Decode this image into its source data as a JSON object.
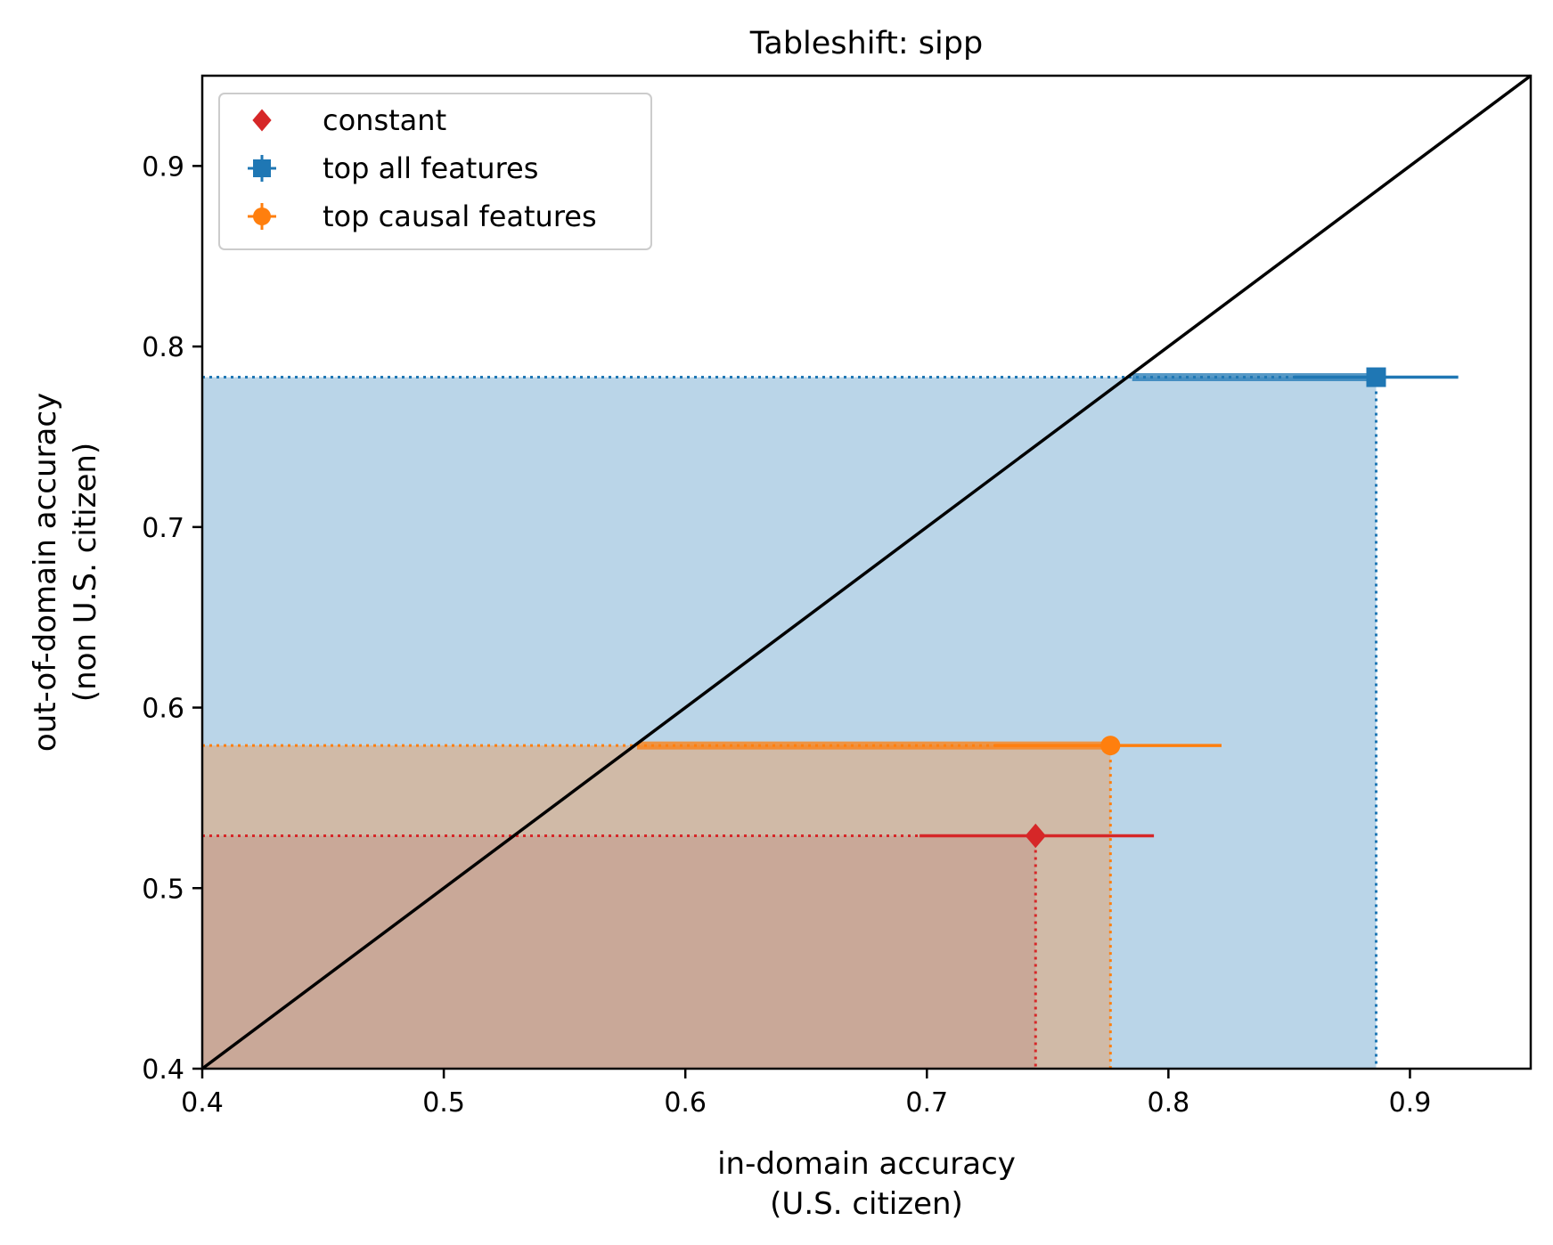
{
  "chart_data": {
    "type": "scatter",
    "title": "Tableshift: sipp",
    "xlabel": [
      "in-domain accuracy",
      "(U.S. citizen)"
    ],
    "ylabel": [
      "out-of-domain accuracy",
      "(non U.S. citizen)"
    ],
    "xlim": [
      0.4,
      0.95
    ],
    "ylim": [
      0.4,
      0.95
    ],
    "xticks": [
      "0.4",
      "0.5",
      "0.6",
      "0.7",
      "0.8",
      "0.9"
    ],
    "yticks": [
      "0.4",
      "0.5",
      "0.6",
      "0.7",
      "0.8",
      "0.9"
    ],
    "grid": false,
    "legend_position": "top-left",
    "diagonal": {
      "from": [
        0.4,
        0.4
      ],
      "to": [
        0.95,
        0.95
      ],
      "color": "#000000"
    },
    "series": [
      {
        "name": "constant",
        "marker": "diamond",
        "color": "#d62728",
        "fill": "#c9a898",
        "x": 0.745,
        "y": 0.529,
        "xerr": [
          0.697,
          0.794
        ],
        "yerr": [
          0.528,
          0.53
        ]
      },
      {
        "name": "top all features",
        "marker": "square",
        "color": "#1f77b4",
        "fill": "#bad5e8",
        "x": 0.886,
        "y": 0.783,
        "xerr": [
          0.852,
          0.92
        ],
        "yerr": [
          0.781,
          0.785
        ],
        "thick_from": 0.785
      },
      {
        "name": "top causal features",
        "marker": "circle",
        "color": "#ff7f0e",
        "fill": "#d0baa7",
        "x": 0.776,
        "y": 0.579,
        "xerr": [
          0.728,
          0.822
        ],
        "yerr": [
          0.577,
          0.581
        ],
        "thick_from": 0.58
      }
    ]
  }
}
